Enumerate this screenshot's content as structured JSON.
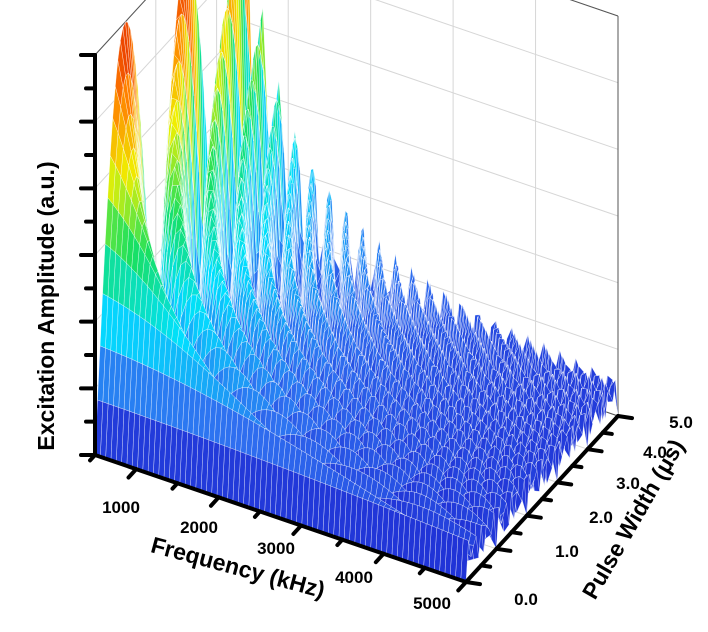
{
  "chart_data": {
    "type": "surface3d",
    "title": "",
    "xlabel": "Frequency (kHz)",
    "ylabel": "Pulse Width (μs)",
    "zlabel": "Excitation Amplitude (a.u.)",
    "x_ticks": [
      "1000",
      "2000",
      "3000",
      "4000",
      "5000"
    ],
    "y_ticks": [
      "0.0",
      "1.0",
      "2.0",
      "3.0",
      "4.0",
      "5.0"
    ],
    "z_ticks": [],
    "xlim": [
      500,
      5000
    ],
    "ylim": [
      0,
      5
    ],
    "zlim": [
      0,
      5.1
    ],
    "function": "excitation amplitude = |sin(pi * f * tau) / (pi * f)|, f in MHz, tau in μs",
    "grid": true,
    "colormap": [
      "#1a1acc",
      "#2f6ff0",
      "#00e0ff",
      "#18e060",
      "#f0f000",
      "#ff8000",
      "#e02000"
    ]
  }
}
